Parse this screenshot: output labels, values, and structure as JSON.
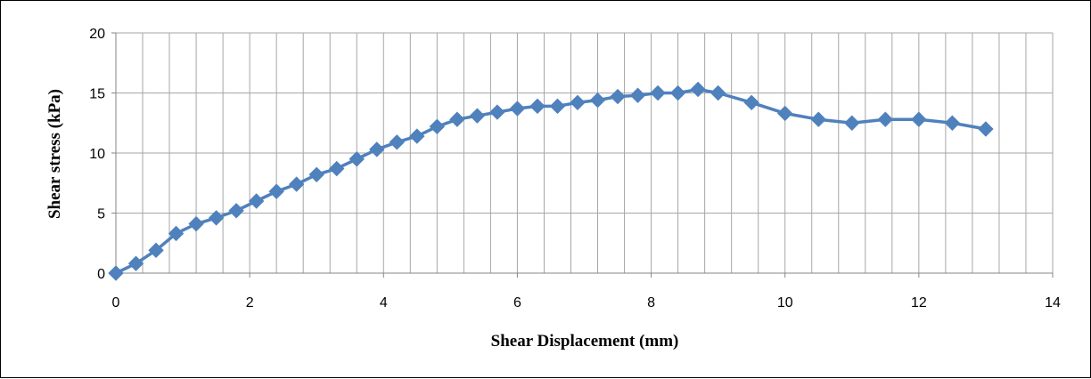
{
  "chart_data": {
    "type": "line",
    "title": "",
    "xlabel": "Shear Displacement (mm)",
    "ylabel": "Shear stress  (kPa)",
    "xlim": [
      0,
      14
    ],
    "ylim": [
      0,
      20
    ],
    "x_ticks": [
      0,
      2,
      4,
      6,
      8,
      10,
      12,
      14
    ],
    "y_ticks": [
      0,
      5,
      10,
      15,
      20
    ],
    "x_minor_step": 0.4,
    "grid": true,
    "legend": "none",
    "marker": "diamond",
    "colors": {
      "series": "#4f81bd",
      "grid": "#a6a6a6",
      "axis": "#868686"
    },
    "series": [
      {
        "x": [
          0,
          0.3,
          0.6,
          0.9,
          1.2,
          1.5,
          1.8,
          2.1,
          2.4,
          2.7,
          3.0,
          3.3,
          3.6,
          3.9,
          4.2,
          4.5,
          4.8,
          5.1,
          5.4,
          5.7,
          6.0,
          6.3,
          6.6,
          6.9,
          7.2,
          7.5,
          7.8,
          8.1,
          8.4,
          8.7,
          9.0,
          9.5,
          10.0,
          10.5,
          11.0,
          11.5,
          12.0,
          12.5,
          13.0
        ],
        "y": [
          0,
          0.8,
          1.9,
          3.3,
          4.1,
          4.6,
          5.2,
          6.0,
          6.8,
          7.4,
          8.2,
          8.7,
          9.5,
          10.3,
          10.9,
          11.4,
          12.2,
          12.8,
          13.1,
          13.4,
          13.7,
          13.9,
          13.9,
          14.2,
          14.4,
          14.7,
          14.8,
          15.0,
          15.0,
          15.3,
          15.0,
          14.2,
          13.3,
          12.8,
          12.5,
          12.8,
          12.8,
          12.5,
          12.0
        ]
      }
    ]
  }
}
